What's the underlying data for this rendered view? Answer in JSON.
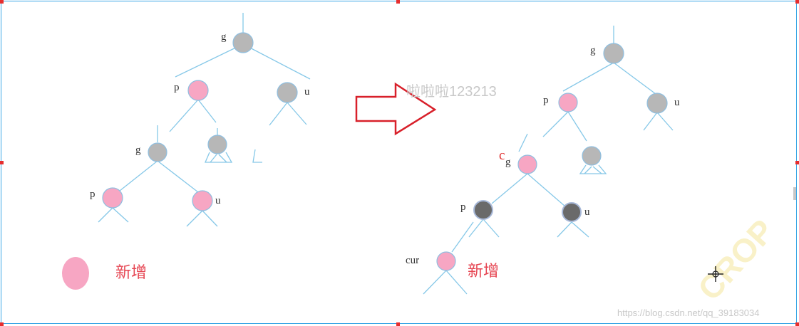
{
  "left_diagram": {
    "top": {
      "g": "g",
      "p": "p",
      "u": "u"
    },
    "sub": {
      "g": "g",
      "p": "p",
      "u": "u"
    },
    "legend_label": "新增"
  },
  "right_diagram": {
    "top": {
      "g": "g",
      "p": "p",
      "u": "u"
    },
    "sub": {
      "c": "c",
      "g": "g",
      "p": "p",
      "u": "u",
      "cur": "cur"
    },
    "legend_label": "新增"
  },
  "overlay_watermark": "啦啦啦123213",
  "source_credit": "https://blog.csdn.net/qq_39183034",
  "corner_watermark": "CROP",
  "colors": {
    "frame": "#3aa6e6",
    "handle": "#e62e2e",
    "arrow": "#d8202a",
    "edge": "#86c8e8",
    "node_black": "#b7b7b7",
    "node_red": "#f7a6c3",
    "node_dark": "#6a6a6a"
  },
  "icons": [
    "right-arrow-icon",
    "crosshair-icon"
  ]
}
